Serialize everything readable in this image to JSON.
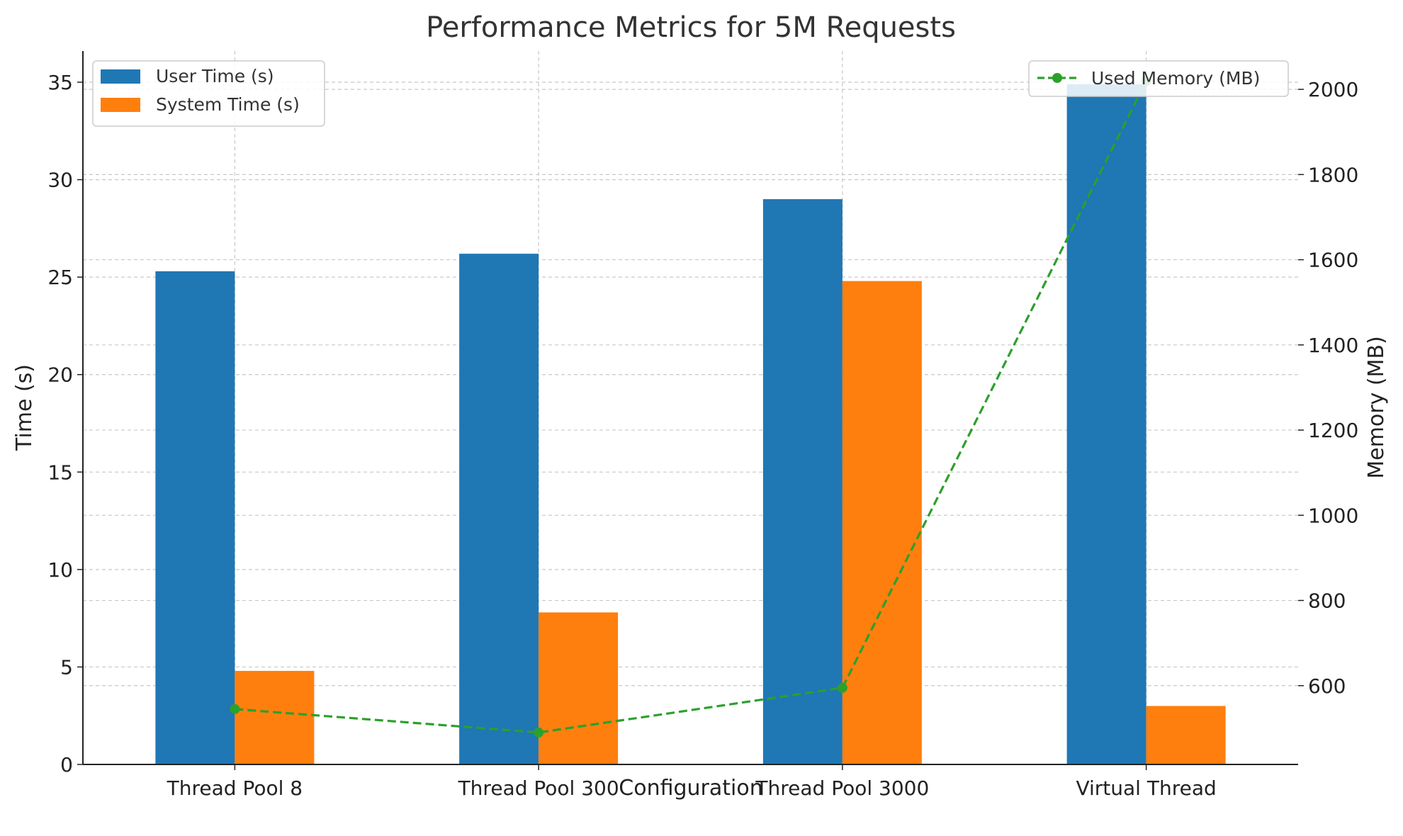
{
  "chart_data": {
    "type": "bar",
    "title": "Performance Metrics for 5M Requests",
    "xlabel": "Configuration",
    "ylabel": "Time (s)",
    "y2label": "Memory (MB)",
    "categories": [
      "Thread Pool 8",
      "Thread Pool 300",
      "Thread Pool 3000",
      "Virtual Thread"
    ],
    "ylim": [
      0,
      36.6
    ],
    "y2lim": [
      415,
      2090
    ],
    "yticks": [
      0,
      5,
      10,
      15,
      20,
      25,
      30,
      35
    ],
    "y2ticks": [
      600,
      800,
      1000,
      1200,
      1400,
      1600,
      1800,
      2000
    ],
    "grid": true,
    "series": [
      {
        "name": "User Time (s)",
        "type": "bar",
        "axis": "left",
        "color": "#1f77b4",
        "values": [
          25.3,
          26.2,
          29.0,
          34.9
        ]
      },
      {
        "name": "System Time (s)",
        "type": "bar",
        "axis": "left",
        "color": "#ff7f0e",
        "values": [
          4.8,
          7.8,
          24.8,
          3.0
        ]
      },
      {
        "name": "Used Memory (MB)",
        "type": "line",
        "axis": "right",
        "style": "dashed",
        "marker": "circle",
        "color": "#2ca02c",
        "values": [
          545,
          490,
          595,
          2020
        ]
      }
    ],
    "legend": [
      {
        "position": "top-left",
        "entries": [
          "User Time (s)",
          "System Time (s)"
        ]
      },
      {
        "position": "top-right",
        "entries": [
          "Used Memory (MB)"
        ]
      }
    ]
  }
}
